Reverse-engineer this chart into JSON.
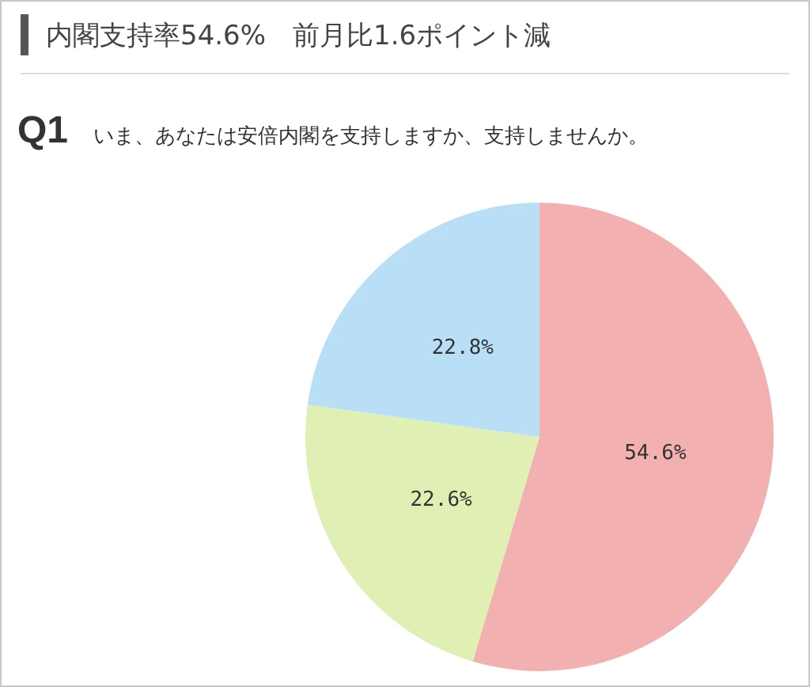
{
  "chart_data": {
    "type": "pie",
    "title": "内閣支持率54.6%　前月比1.6ポイント減",
    "subtitle": "Q1",
    "annotations": [
      "いま、あなたは安倍内閣を支持しますか、支持しませんか。"
    ],
    "categories": [
      null,
      null,
      null
    ],
    "values": [
      54.6,
      22.6,
      22.8
    ],
    "colors": [
      "#f2b0b0",
      "#e0efb4",
      "#b8dff5"
    ],
    "value_labels": [
      "54.6%",
      "22.6%",
      "22.8%"
    ],
    "legend": false
  }
}
